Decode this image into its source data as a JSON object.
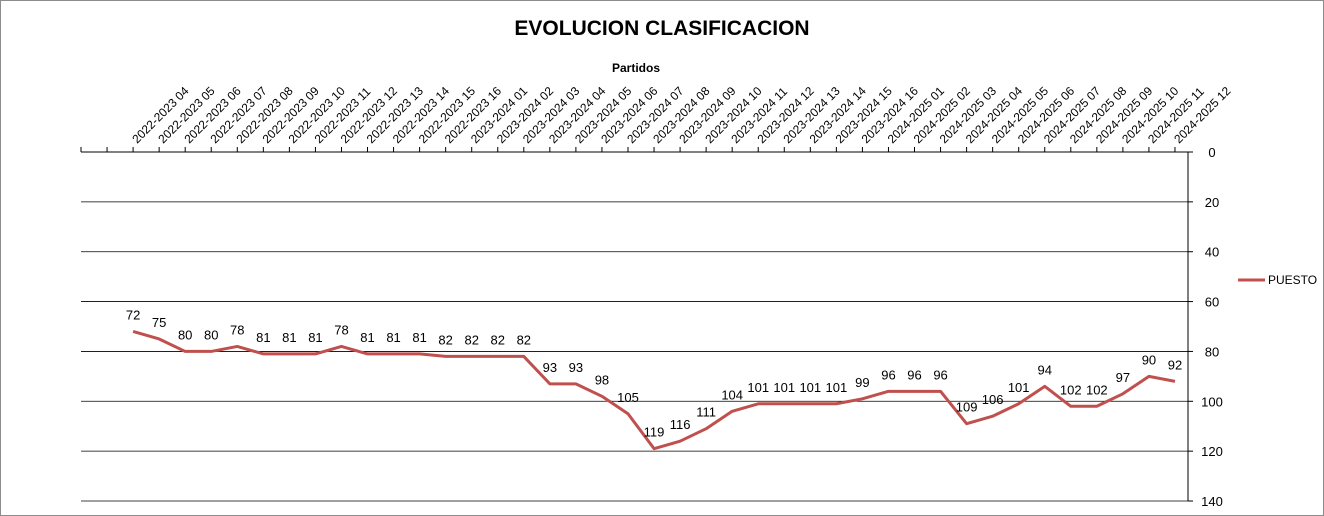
{
  "chart_data": {
    "type": "line",
    "title": "EVOLUCION CLASIFICACION",
    "xlabel": "Partidos",
    "ylabel": "",
    "ylim": [
      0,
      140
    ],
    "y_inverted": true,
    "y_ticks": [
      0,
      20,
      40,
      60,
      80,
      100,
      120,
      140
    ],
    "x_axis_position": "top",
    "y_axis_position": "right",
    "grid": "horizontal",
    "legend_position": "right",
    "leading_blank_ticks": 2,
    "categories": [
      "2022-2023 04",
      "2022-2023 05",
      "2022-2023 06",
      "2022-2023 07",
      "2022-2023 08",
      "2022-2023 09",
      "2022-2023 10",
      "2022-2023 11",
      "2022-2023 12",
      "2022-2023 13",
      "2022-2023 14",
      "2022-2023 15",
      "2022-2023 16",
      "2023-2024 01",
      "2023-2024 02",
      "2023-2024 03",
      "2023-2024 04",
      "2023-2024 05",
      "2023-2024 06",
      "2023-2024 07",
      "2023-2024 08",
      "2023-2024 09",
      "2023-2024 10",
      "2023-2024 11",
      "2023-2024 12",
      "2023-2024 13",
      "2023-2024 14",
      "2023-2024 15",
      "2023-2024 16",
      "2024-2025 01",
      "2024-2025 02",
      "2024-2025 03",
      "2024-2025 04",
      "2024-2025 05",
      "2024-2025 06",
      "2024-2025 07",
      "2024-2025 08",
      "2024-2025 09",
      "2024-2025 10",
      "2024-2025 11",
      "2024-2025 12"
    ],
    "series": [
      {
        "name": "PUESTO",
        "color": "#c0504d",
        "values": [
          72,
          75,
          80,
          80,
          78,
          81,
          81,
          81,
          78,
          81,
          81,
          81,
          82,
          82,
          82,
          82,
          93,
          93,
          98,
          105,
          119,
          116,
          111,
          104,
          101,
          101,
          101,
          101,
          99,
          96,
          96,
          96,
          109,
          106,
          101,
          94,
          102,
          102,
          97,
          90,
          92
        ]
      }
    ]
  }
}
